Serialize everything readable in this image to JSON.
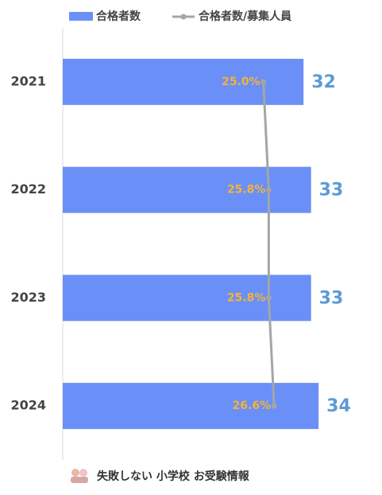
{
  "chart_data": {
    "type": "bar",
    "categories": [
      "2021",
      "2022",
      "2023",
      "2024"
    ],
    "series": [
      {
        "name": "合格者数",
        "color": "#6a8ff7",
        "values": [
          32,
          33,
          33,
          34
        ],
        "value_color": "#5b9bd5"
      },
      {
        "name": "合格者数/募集人員",
        "type": "line",
        "axis": "x2",
        "color": "#a5a5a5",
        "values": [
          25.0,
          25.8,
          25.8,
          26.6
        ],
        "value_labels": [
          "25.0%",
          "25.8%",
          "25.8%",
          "26.6%"
        ],
        "value_color": "#f5b335"
      }
    ],
    "orientation": "horizontal",
    "xlim": [
      0,
      40
    ],
    "x2lim": [
      -5,
      40
    ],
    "footer": "失敗しない 小学校 お受験情報"
  }
}
